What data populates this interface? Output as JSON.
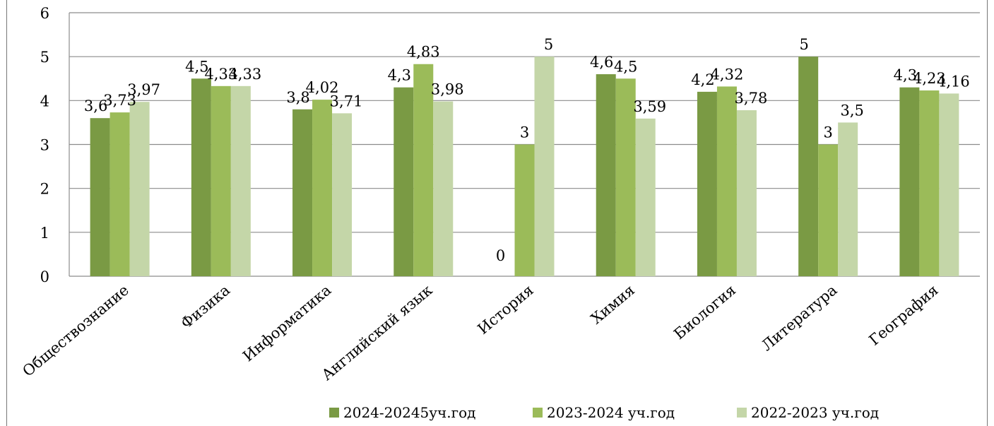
{
  "chart_data": {
    "type": "bar",
    "title": "",
    "ylim": [
      0,
      6
    ],
    "yticks": [
      "0",
      "1",
      "2",
      "3",
      "4",
      "5",
      "6"
    ],
    "grid": true,
    "legend_position": "bottom",
    "categories": [
      "Обществознание",
      "Физика",
      "Информатика",
      "Английский язык",
      "История",
      "Химия",
      "Биология",
      "Литература",
      "География"
    ],
    "series": [
      {
        "name": "2024-20245уч.год",
        "color": "#7a9a44",
        "values": [
          3.6,
          4.5,
          3.8,
          4.3,
          0,
          4.6,
          4.2,
          5,
          4.3
        ],
        "labels": [
          "3,6",
          "4,5",
          "3,8",
          "4,3",
          "0",
          "4,6",
          "4,2",
          "5",
          "4,3"
        ]
      },
      {
        "name": "2023-2024 уч.год",
        "color": "#9bbb59",
        "values": [
          3.73,
          4.33,
          4.02,
          4.83,
          3,
          4.5,
          4.32,
          3,
          4.23
        ],
        "labels": [
          "3,73",
          "4,33",
          "4,02",
          "4,83",
          "3",
          "4,5",
          "4,32",
          "3",
          "4,23"
        ]
      },
      {
        "name": "2022-2023 уч.год",
        "color": "#c4d6a8",
        "values": [
          3.97,
          4.33,
          3.71,
          3.98,
          5,
          3.59,
          3.78,
          3.5,
          4.16
        ],
        "labels": [
          "3,97",
          "4,33",
          "3,71",
          "3,98",
          "5",
          "3,59",
          "3,78",
          "3,5",
          "4,16"
        ]
      }
    ]
  }
}
